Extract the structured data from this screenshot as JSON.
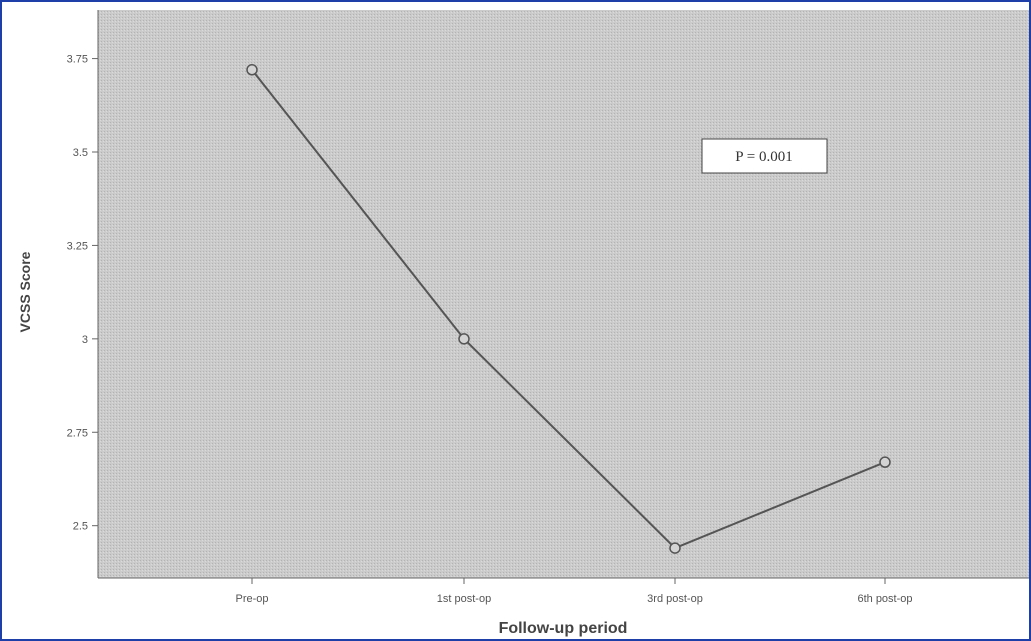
{
  "chart_data": {
    "type": "line",
    "categories": [
      "Pre-op",
      "1st post-op",
      "3rd post-op",
      "6th post-op"
    ],
    "series": [
      {
        "values": [
          3.72,
          3.0,
          2.44,
          2.67
        ]
      }
    ],
    "xlabel": "Follow-up period",
    "ylabel": "VCSS Score",
    "ylim": [
      2.36,
      3.88
    ],
    "yticks": [
      2.5,
      2.75,
      3,
      3.25,
      3.5,
      3.75
    ],
    "ytick_labels": [
      "2.5",
      "2.75",
      "3",
      "3.25",
      "3.5",
      "3.75"
    ],
    "annotation": "P = 0.001",
    "grid": false,
    "colors": {
      "plot_background": "#c9c9c9",
      "line": "#555555",
      "frame_border": "#1f3fa8"
    }
  }
}
